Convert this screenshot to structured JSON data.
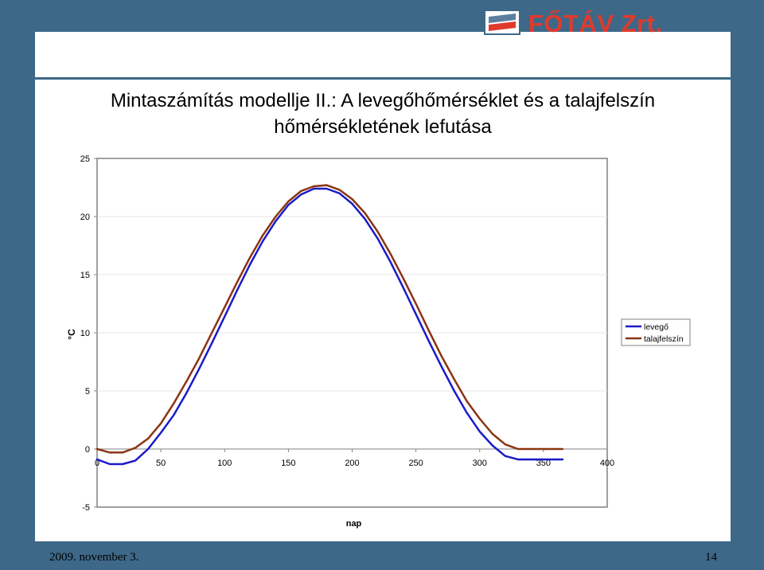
{
  "slide": {
    "title_line1": "Mintaszámítás modellje II.: A levegőhőmérséklet és a talajfelszín",
    "title_line2": "hőmérsékletének lefutása",
    "logo_text": "FŐTÁV Zrt.",
    "footer_date": "2009. november 3.",
    "page_number": "14"
  },
  "colors": {
    "background": "#3d6888",
    "levego": "#1b1bc8",
    "talajfelszin": "#8b3412",
    "logo_red": "#e03a2c"
  },
  "chart_data": {
    "type": "line",
    "xlabel": "nap",
    "ylabel": "°C",
    "xlim": [
      0,
      400
    ],
    "ylim": [
      -5,
      25
    ],
    "x_ticks": [
      "0",
      "50",
      "100",
      "150",
      "200",
      "250",
      "300",
      "350",
      "400"
    ],
    "y_ticks": [
      "25",
      "20",
      "15",
      "10",
      "5",
      "0",
      "-5"
    ],
    "legend_position": "right",
    "grid": true,
    "series": [
      {
        "name": "levegő",
        "x": [
          0,
          10,
          20,
          30,
          40,
          50,
          60,
          70,
          80,
          90,
          100,
          110,
          120,
          130,
          140,
          150,
          160,
          170,
          180,
          190,
          200,
          210,
          220,
          230,
          240,
          250,
          260,
          270,
          280,
          290,
          300,
          310,
          320,
          330,
          340,
          350,
          360,
          365
        ],
        "y": [
          -0.9,
          -1.3,
          -1.3,
          -1.0,
          0.0,
          1.4,
          2.9,
          4.8,
          6.9,
          9.1,
          11.4,
          13.7,
          15.9,
          17.9,
          19.6,
          21.0,
          21.9,
          22.4,
          22.4,
          22.0,
          21.1,
          19.8,
          18.1,
          16.1,
          13.9,
          11.6,
          9.3,
          7.1,
          5.0,
          3.1,
          1.5,
          0.3,
          -0.6,
          -0.9,
          -0.9,
          -0.9,
          -0.9,
          -0.9
        ]
      },
      {
        "name": "talajfelszín",
        "x": [
          0,
          10,
          20,
          30,
          40,
          50,
          60,
          70,
          80,
          90,
          100,
          110,
          120,
          130,
          140,
          150,
          160,
          170,
          180,
          190,
          200,
          210,
          220,
          230,
          240,
          250,
          260,
          270,
          280,
          290,
          300,
          310,
          320,
          330,
          340,
          350,
          360,
          365
        ],
        "y": [
          0.0,
          -0.3,
          -0.3,
          0.1,
          0.9,
          2.2,
          3.9,
          5.8,
          7.8,
          10.0,
          12.2,
          14.4,
          16.5,
          18.4,
          20.0,
          21.3,
          22.2,
          22.6,
          22.7,
          22.3,
          21.5,
          20.3,
          18.7,
          16.8,
          14.7,
          12.5,
          10.2,
          8.0,
          6.0,
          4.1,
          2.6,
          1.3,
          0.4,
          0.0,
          0.0,
          0.0,
          0.0,
          0.0
        ]
      }
    ]
  }
}
